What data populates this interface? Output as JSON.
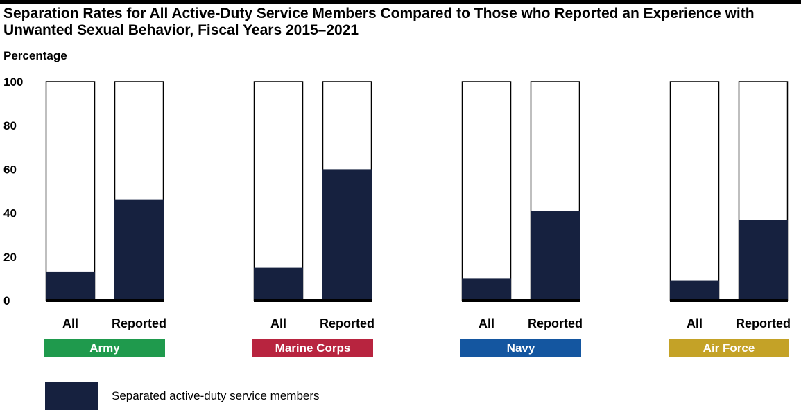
{
  "chart_data": {
    "type": "bar",
    "title": "Separation Rates for All Active-Duty Service Members Compared to Those who Reported an Experience with Unwanted Sexual Behavior, Fiscal Years 2015–2021",
    "ylabel": "Percentage",
    "ylim": [
      0,
      100
    ],
    "yticks": [
      "0",
      "20",
      "40",
      "60",
      "80",
      "100"
    ],
    "bar_labels": [
      "All",
      "Reported"
    ],
    "groups": [
      {
        "label": "Army",
        "color": "#1f9a4d",
        "values": [
          13,
          46
        ]
      },
      {
        "label": "Marine Corps",
        "color": "#b8243f",
        "values": [
          15,
          60
        ]
      },
      {
        "label": "Navy",
        "color": "#1456a0",
        "values": [
          10,
          41
        ]
      },
      {
        "label": "Air Force",
        "color": "#c4a227",
        "values": [
          9,
          37
        ]
      }
    ],
    "bar_fill_color": "#16213f",
    "legend": [
      {
        "label": "Separated active-duty service members",
        "color": "#16213f"
      }
    ]
  }
}
